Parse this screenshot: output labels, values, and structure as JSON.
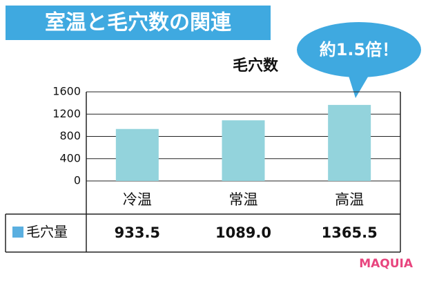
{
  "chart_data": {
    "type": "bar",
    "title": "室温と毛穴数の関連",
    "ylabel": "毛穴数",
    "annotation": "約1.5倍！",
    "logo": "MAQUIA",
    "categories": [
      "冷温",
      "常温",
      "高温"
    ],
    "series": [
      {
        "name": "毛穴量",
        "color": "#93d3dc",
        "legend_color": "#5aafe0",
        "values": [
          933.5,
          1089,
          1365.5
        ],
        "value_labels": [
          "933.5",
          "1089.0",
          "1365.5"
        ]
      }
    ],
    "ylim": [
      0,
      1600
    ],
    "yticks": [
      0,
      400,
      800,
      1200,
      1600
    ],
    "grid": true
  }
}
